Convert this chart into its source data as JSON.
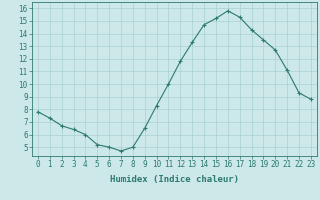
{
  "x": [
    0,
    1,
    2,
    3,
    4,
    5,
    6,
    7,
    8,
    9,
    10,
    11,
    12,
    13,
    14,
    15,
    16,
    17,
    18,
    19,
    20,
    21,
    22,
    23
  ],
  "y": [
    7.8,
    7.3,
    6.7,
    6.4,
    6.0,
    5.2,
    5.0,
    4.7,
    5.0,
    6.5,
    8.3,
    10.0,
    11.8,
    13.3,
    14.7,
    15.2,
    15.8,
    15.3,
    14.3,
    13.5,
    12.7,
    11.1,
    9.3,
    8.8
  ],
  "line_color": "#2d7a6e",
  "marker": "+",
  "marker_size": 3,
  "bg_color": "#cce8e8",
  "grid_color": "#aad0d0",
  "xlabel": "Humidex (Indice chaleur)",
  "ylim": [
    4.3,
    16.5
  ],
  "xlim": [
    -0.5,
    23.5
  ],
  "yticks": [
    5,
    6,
    7,
    8,
    9,
    10,
    11,
    12,
    13,
    14,
    15,
    16
  ],
  "xticks": [
    0,
    1,
    2,
    3,
    4,
    5,
    6,
    7,
    8,
    9,
    10,
    11,
    12,
    13,
    14,
    15,
    16,
    17,
    18,
    19,
    20,
    21,
    22,
    23
  ],
  "tick_color": "#2d7a6e",
  "label_fontsize": 6.5,
  "tick_fontsize": 5.5,
  "linewidth": 0.8
}
